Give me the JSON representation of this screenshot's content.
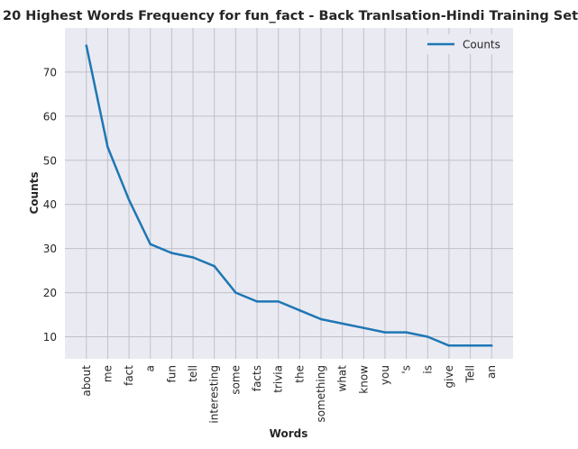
{
  "chart_data": {
    "type": "line",
    "title": "20 Highest Words Frequency for fun_fact - Back Tranlsation-Hindi Training Set",
    "xlabel": "Words",
    "ylabel": "Counts",
    "categories": [
      "about",
      "me",
      "fact",
      "a",
      "fun",
      "tell",
      "interesting",
      "some",
      "facts",
      "trivia",
      "the",
      "something",
      "what",
      "know",
      "you",
      "'s",
      "is",
      "give",
      "Tell",
      "an"
    ],
    "series": [
      {
        "name": "Counts",
        "values": [
          76,
          53,
          41,
          31,
          29,
          28,
          26,
          20,
          18,
          18,
          16,
          14,
          13,
          12,
          11,
          11,
          10,
          8,
          8,
          8
        ],
        "color": "#1f77b4"
      }
    ],
    "ylim": [
      5,
      80
    ],
    "yticks": [
      10,
      20,
      30,
      40,
      50,
      60,
      70
    ],
    "grid": true,
    "legend": "top-right",
    "background": "#eaeaf2",
    "grid_color": "#c0c0c8"
  }
}
